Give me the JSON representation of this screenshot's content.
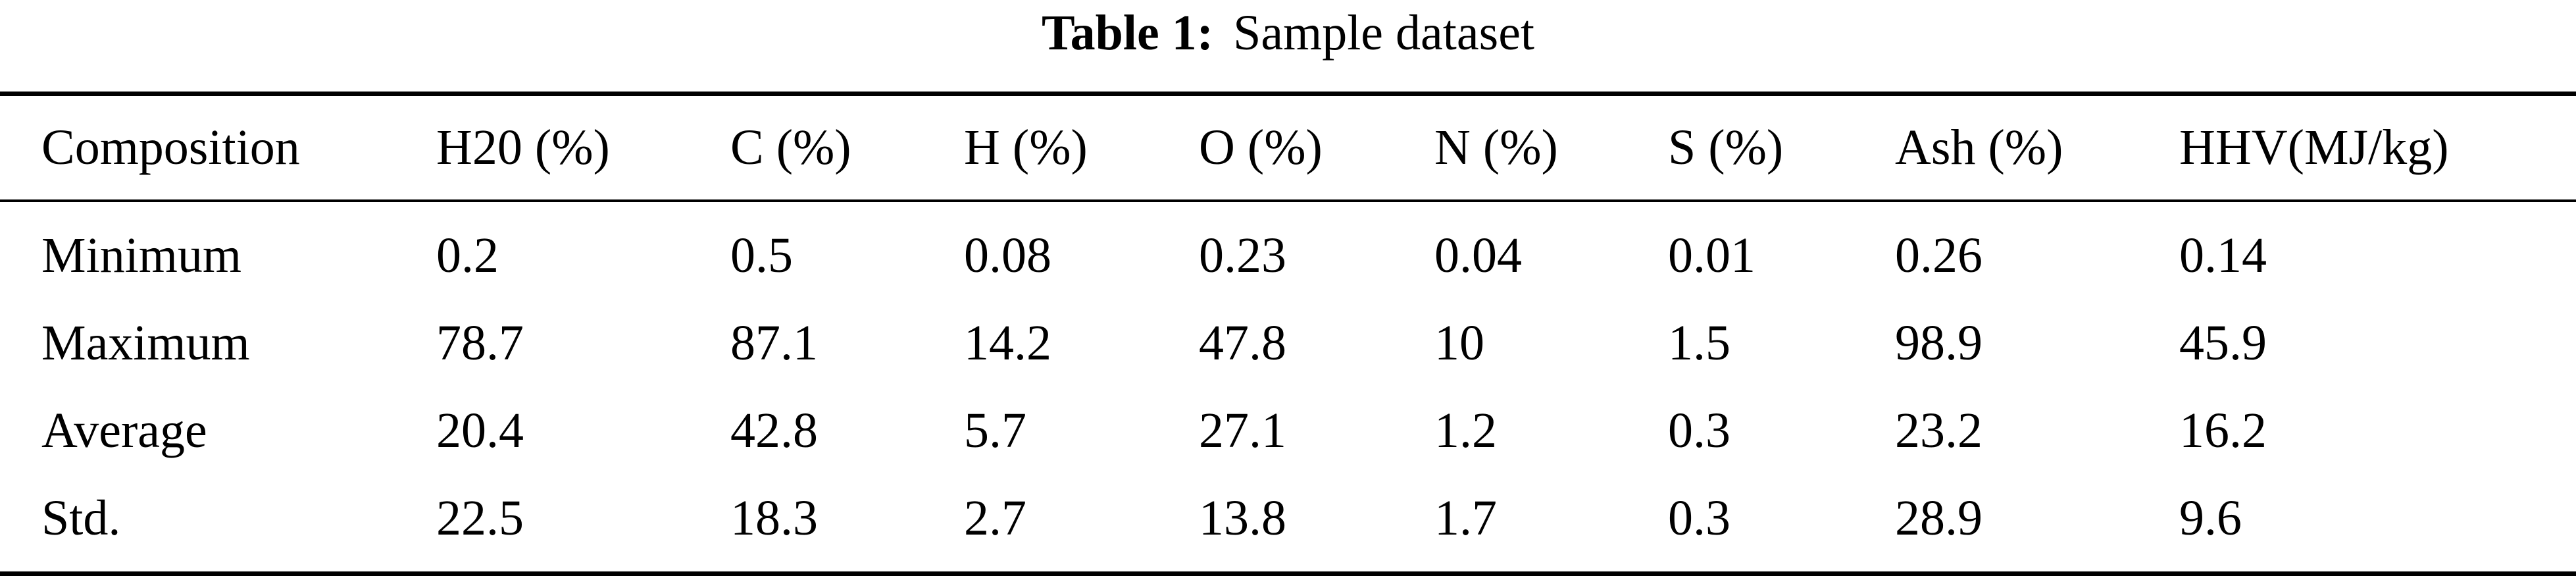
{
  "caption": {
    "label": "Table 1:",
    "text": "Sample dataset"
  },
  "table": {
    "headers": [
      "Composition",
      "H20 (%)",
      "C (%)",
      "H (%)",
      "O (%)",
      "N (%)",
      "S (%)",
      "Ash (%)",
      "HHV(MJ/kg)"
    ],
    "rows": [
      [
        "Minimum",
        "0.2",
        "0.5",
        "0.08",
        "0.23",
        "0.04",
        "0.01",
        "0.26",
        "0.14"
      ],
      [
        "Maximum",
        "78.7",
        "87.1",
        "14.2",
        "47.8",
        "10",
        "1.5",
        "98.9",
        "45.9"
      ],
      [
        "Average",
        "20.4",
        "42.8",
        "5.7",
        "27.1",
        "1.2",
        "0.3",
        "23.2",
        "16.2"
      ],
      [
        "Std.",
        "22.5",
        "18.3",
        "2.7",
        "13.8",
        "1.7",
        "0.3",
        "28.9",
        "9.6"
      ]
    ]
  }
}
